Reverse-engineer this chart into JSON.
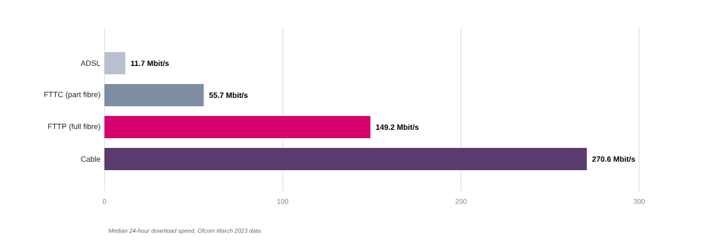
{
  "chart_data": {
    "type": "bar",
    "orientation": "horizontal",
    "categories": [
      "ADSL",
      "FTTC (part fibre)",
      "FTTP (full fibre)",
      "Cable"
    ],
    "values": [
      11.7,
      55.7,
      149.2,
      270.6
    ],
    "colors": [
      "#b8c0d0",
      "#7d8ea3",
      "#d6006e",
      "#5a3b6e"
    ],
    "value_labels": [
      "11.7 Mbit/s",
      "55.7 Mbit/s",
      "149.2 Mbit/s",
      "270.6 Mbit/s"
    ],
    "xlim": [
      0,
      300
    ],
    "xticks": [
      0,
      100,
      200,
      300
    ],
    "grid": "x",
    "annotations": [
      "Median 24-hour download speed, Ofcom March 2023 data"
    ]
  }
}
